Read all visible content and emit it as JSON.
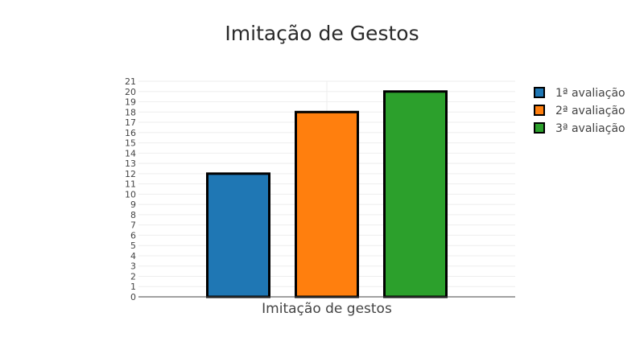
{
  "chart_data": {
    "type": "bar",
    "title": "Imitação de Gestos",
    "xlabel": "",
    "ylabel": "",
    "categories": [
      "Imitação de gestos"
    ],
    "series": [
      {
        "name": "1ª avaliação",
        "values": [
          12
        ],
        "color": "#1f77b4"
      },
      {
        "name": "2ª avaliação",
        "values": [
          18
        ],
        "color": "#ff7f0e"
      },
      {
        "name": "3ª avaliação",
        "values": [
          20
        ],
        "color": "#2ca02c"
      }
    ],
    "ylim": [
      0,
      21
    ],
    "yticks": [
      "0",
      "1",
      "2",
      "3",
      "4",
      "5",
      "6",
      "7",
      "8",
      "9",
      "10",
      "11",
      "12",
      "13",
      "14",
      "15",
      "16",
      "17",
      "18",
      "19",
      "20",
      "21"
    ],
    "grid": true,
    "legend_position": "top-right",
    "bar_outline_color": "#000000"
  }
}
